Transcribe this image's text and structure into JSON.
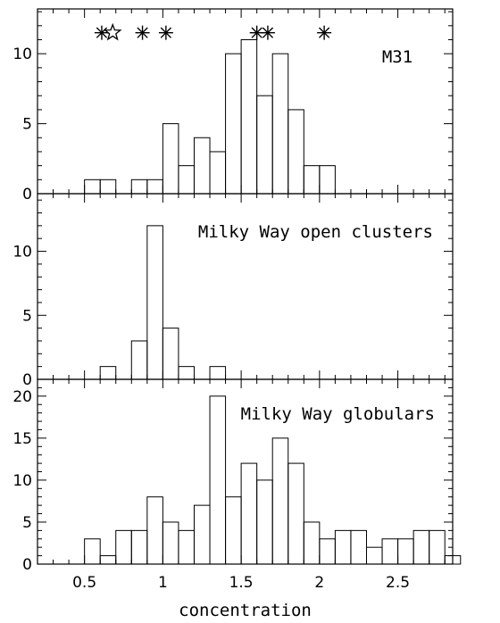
{
  "chart_data": [
    {
      "type": "bar",
      "panel": "top",
      "label": "M31",
      "xlim": [
        0.2,
        2.85
      ],
      "ylim": [
        0,
        13.2
      ],
      "bin_width": 0.1,
      "bin_starts": [
        0.5,
        0.6,
        0.7,
        0.8,
        0.9,
        1.0,
        1.1,
        1.2,
        1.3,
        1.4,
        1.5,
        1.6,
        1.7,
        1.8,
        1.9,
        2.0
      ],
      "values": [
        1,
        1,
        0,
        1,
        1,
        5,
        2,
        4,
        3,
        10,
        11,
        7,
        10,
        6,
        2,
        2
      ],
      "yticks": [
        0,
        5,
        10
      ],
      "ytick_labels": [
        "0",
        "5",
        "10"
      ],
      "markers": [
        {
          "x": 0.61,
          "symbol": "asterisk"
        },
        {
          "x": 0.68,
          "symbol": "open-star"
        },
        {
          "x": 0.87,
          "symbol": "asterisk"
        },
        {
          "x": 1.02,
          "symbol": "asterisk"
        },
        {
          "x": 1.6,
          "symbol": "asterisk"
        },
        {
          "x": 1.67,
          "symbol": "asterisk"
        },
        {
          "x": 2.03,
          "symbol": "asterisk"
        }
      ],
      "marker_y": 11.5
    },
    {
      "type": "bar",
      "panel": "middle",
      "label": "Milky Way open clusters",
      "xlim": [
        0.2,
        2.85
      ],
      "ylim": [
        0,
        14.5
      ],
      "bin_width": 0.1,
      "bin_starts": [
        0.6,
        0.7,
        0.8,
        0.9,
        1.0,
        1.1,
        1.2,
        1.3
      ],
      "values": [
        1,
        0,
        3,
        12,
        4,
        1,
        0,
        1
      ],
      "yticks": [
        0,
        5,
        10
      ],
      "ytick_labels": [
        "0",
        "5",
        "10"
      ]
    },
    {
      "type": "bar",
      "panel": "bottom",
      "label": "Milky Way globulars",
      "xlim": [
        0.2,
        2.85
      ],
      "ylim": [
        0,
        22
      ],
      "bin_width": 0.1,
      "bin_starts": [
        0.5,
        0.6,
        0.7,
        0.8,
        0.9,
        1.0,
        1.1,
        1.2,
        1.3,
        1.4,
        1.5,
        1.6,
        1.7,
        1.8,
        1.9,
        2.0,
        2.1,
        2.2,
        2.3,
        2.4,
        2.5,
        2.6,
        2.7,
        2.8
      ],
      "values": [
        3,
        1,
        4,
        4,
        8,
        5,
        4,
        7,
        20,
        8,
        12,
        10,
        15,
        12,
        5,
        3,
        4,
        4,
        2,
        3,
        3,
        4,
        4,
        1
      ],
      "yticks": [
        0,
        5,
        10,
        15,
        20
      ],
      "ytick_labels": [
        "0",
        "5",
        "10",
        "15",
        "20"
      ],
      "xticks": [
        0.5,
        1,
        1.5,
        2,
        2.5
      ],
      "xtick_labels": [
        "0.5",
        "1",
        "1.5",
        "2",
        "2.5"
      ],
      "xlabel": "concentration"
    }
  ]
}
